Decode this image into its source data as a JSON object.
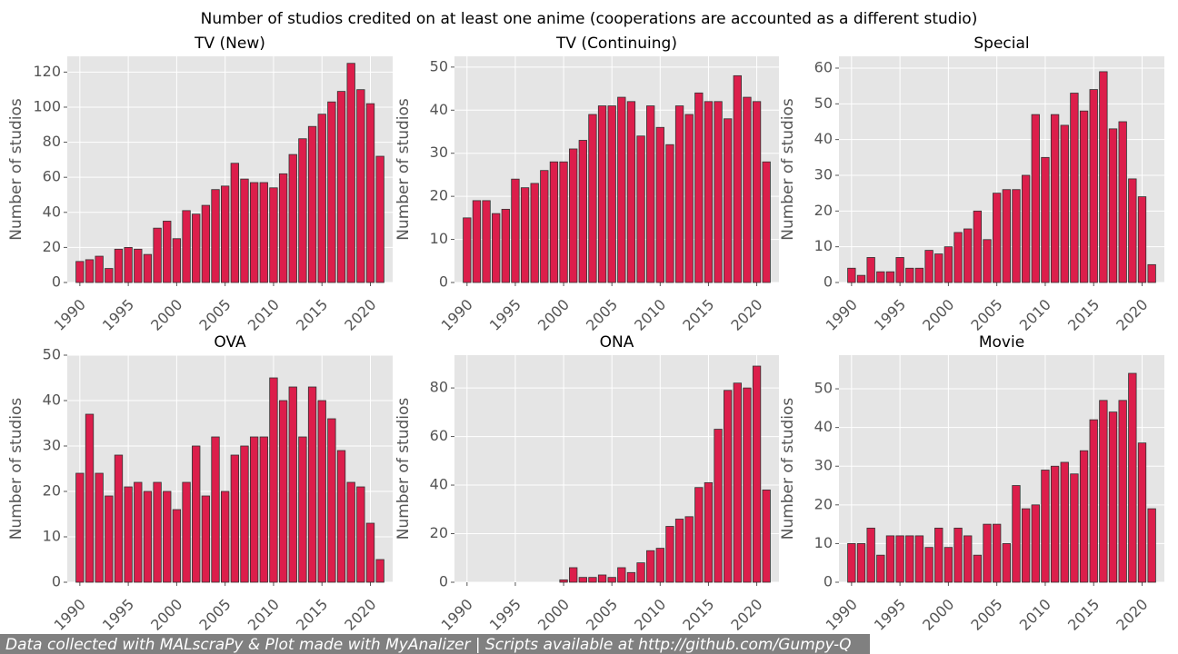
{
  "title": "Number of studios credited on at least one anime (cooperations are accounted as a different studio)",
  "footer": "Data collected with MALscraPy & Plot made with MyAnalizer | Scripts available at http://github.com/Gumpy-Q",
  "chart_data": [
    {
      "type": "bar",
      "title": "TV (New)",
      "ylabel": "Number of studios",
      "color": "#dc1e4b",
      "grid": true,
      "x": [
        1990,
        1991,
        1992,
        1993,
        1994,
        1995,
        1996,
        1997,
        1998,
        1999,
        2000,
        2001,
        2002,
        2003,
        2004,
        2005,
        2006,
        2007,
        2008,
        2009,
        2010,
        2011,
        2012,
        2013,
        2014,
        2015,
        2016,
        2017,
        2018,
        2019,
        2020,
        2021
      ],
      "values": [
        12,
        13,
        15,
        8,
        19,
        20,
        19,
        16,
        31,
        35,
        25,
        41,
        39,
        44,
        53,
        55,
        68,
        59,
        57,
        57,
        54,
        62,
        73,
        82,
        89,
        96,
        103,
        109,
        125,
        110,
        102,
        72
      ],
      "xlim": [
        1988.7,
        2022.3
      ],
      "xticks": [
        1990,
        1995,
        2000,
        2005,
        2010,
        2015,
        2020
      ],
      "ylim": [
        0,
        129
      ],
      "yticks": [
        0,
        20,
        40,
        60,
        80,
        100,
        120
      ]
    },
    {
      "type": "bar",
      "title": "TV (Continuing)",
      "ylabel": "Number of studios",
      "color": "#dc1e4b",
      "grid": true,
      "x": [
        1990,
        1991,
        1992,
        1993,
        1994,
        1995,
        1996,
        1997,
        1998,
        1999,
        2000,
        2001,
        2002,
        2003,
        2004,
        2005,
        2006,
        2007,
        2008,
        2009,
        2010,
        2011,
        2012,
        2013,
        2014,
        2015,
        2016,
        2017,
        2018,
        2019,
        2020,
        2021
      ],
      "values": [
        15,
        19,
        19,
        16,
        17,
        24,
        22,
        23,
        26,
        28,
        28,
        31,
        33,
        39,
        41,
        41,
        43,
        42,
        34,
        41,
        36,
        32,
        41,
        39,
        44,
        42,
        42,
        38,
        48,
        43,
        42,
        28
      ],
      "xlim": [
        1988.7,
        2022.3
      ],
      "xticks": [
        1990,
        1995,
        2000,
        2005,
        2010,
        2015,
        2020
      ],
      "ylim": [
        0,
        52.5
      ],
      "yticks": [
        0,
        10,
        20,
        30,
        40,
        50
      ]
    },
    {
      "type": "bar",
      "title": "Special",
      "ylabel": "Number of studios",
      "color": "#dc1e4b",
      "grid": true,
      "x": [
        1990,
        1991,
        1992,
        1993,
        1994,
        1995,
        1996,
        1997,
        1998,
        1999,
        2000,
        2001,
        2002,
        2003,
        2004,
        2005,
        2006,
        2007,
        2008,
        2009,
        2010,
        2011,
        2012,
        2013,
        2014,
        2015,
        2016,
        2017,
        2018,
        2019,
        2020,
        2021
      ],
      "values": [
        4,
        2,
        7,
        3,
        3,
        7,
        4,
        4,
        9,
        8,
        10,
        14,
        15,
        20,
        12,
        25,
        26,
        26,
        30,
        47,
        35,
        47,
        44,
        53,
        48,
        54,
        59,
        43,
        45,
        29,
        24,
        5
      ],
      "xlim": [
        1988.7,
        2022.3
      ],
      "xticks": [
        1990,
        1995,
        2000,
        2005,
        2010,
        2015,
        2020
      ],
      "ylim": [
        0,
        63.3
      ],
      "yticks": [
        0,
        10,
        20,
        30,
        40,
        50,
        60
      ]
    },
    {
      "type": "bar",
      "title": "OVA",
      "ylabel": "Number of studios",
      "color": "#dc1e4b",
      "grid": true,
      "x": [
        1990,
        1991,
        1992,
        1993,
        1994,
        1995,
        1996,
        1997,
        1998,
        1999,
        2000,
        2001,
        2002,
        2003,
        2004,
        2005,
        2006,
        2007,
        2008,
        2009,
        2010,
        2011,
        2012,
        2013,
        2014,
        2015,
        2016,
        2017,
        2018,
        2019,
        2020,
        2021
      ],
      "values": [
        24,
        37,
        24,
        19,
        28,
        21,
        22,
        20,
        22,
        20,
        16,
        22,
        30,
        19,
        32,
        20,
        28,
        30,
        32,
        32,
        45,
        40,
        43,
        32,
        43,
        40,
        36,
        29,
        22,
        21,
        13,
        5
      ],
      "xlim": [
        1988.7,
        2022.3
      ],
      "xticks": [
        1990,
        1995,
        2000,
        2005,
        2010,
        2015,
        2020
      ],
      "ylim": [
        0,
        50
      ],
      "yticks": [
        0,
        10,
        20,
        30,
        40,
        50
      ]
    },
    {
      "type": "bar",
      "title": "ONA",
      "ylabel": "Number of studios",
      "color": "#dc1e4b",
      "grid": true,
      "x": [
        1990,
        1991,
        1992,
        1993,
        1994,
        1995,
        1996,
        1997,
        1998,
        1999,
        2000,
        2001,
        2002,
        2003,
        2004,
        2005,
        2006,
        2007,
        2008,
        2009,
        2010,
        2011,
        2012,
        2013,
        2014,
        2015,
        2016,
        2017,
        2018,
        2019,
        2020,
        2021
      ],
      "values": [
        0,
        0,
        0,
        0,
        0,
        0,
        0,
        0,
        0,
        0,
        1,
        6,
        2,
        2,
        3,
        2,
        6,
        4,
        8,
        13,
        14,
        23,
        26,
        27,
        39,
        41,
        63,
        79,
        82,
        80,
        89,
        38
      ],
      "xlim": [
        1988.7,
        2022.3
      ],
      "xticks": [
        1990,
        1995,
        2000,
        2005,
        2010,
        2015,
        2020
      ],
      "ylim": [
        0,
        93.5
      ],
      "yticks": [
        0,
        20,
        40,
        60,
        80
      ]
    },
    {
      "type": "bar",
      "title": "Movie",
      "ylabel": "Number of studios",
      "color": "#dc1e4b",
      "grid": true,
      "x": [
        1990,
        1991,
        1992,
        1993,
        1994,
        1995,
        1996,
        1997,
        1998,
        1999,
        2000,
        2001,
        2002,
        2003,
        2004,
        2005,
        2006,
        2007,
        2008,
        2009,
        2010,
        2011,
        2012,
        2013,
        2014,
        2015,
        2016,
        2017,
        2018,
        2019,
        2020,
        2021
      ],
      "values": [
        10,
        10,
        14,
        7,
        12,
        12,
        12,
        12,
        9,
        14,
        9,
        14,
        12,
        7,
        15,
        15,
        10,
        25,
        19,
        20,
        29,
        30,
        31,
        28,
        34,
        42,
        47,
        44,
        47,
        54,
        36,
        19
      ],
      "xlim": [
        1988.7,
        2022.3
      ],
      "xticks": [
        1990,
        1995,
        2000,
        2005,
        2010,
        2015,
        2020
      ],
      "ylim": [
        0,
        58.7
      ],
      "yticks": [
        0,
        10,
        20,
        30,
        40,
        50
      ]
    }
  ]
}
